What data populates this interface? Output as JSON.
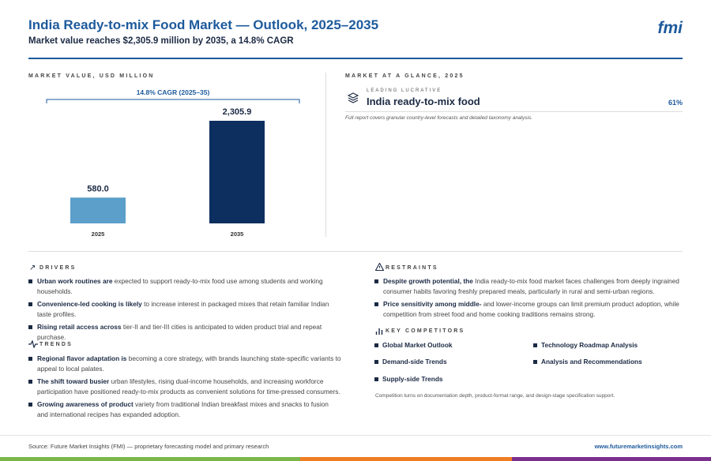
{
  "header": {
    "title": "India Ready-to-mix Food Market — Outlook, 2025–2035",
    "subtitle": "Market value reaches $2,305.9 million by 2035, a 14.8% CAGR",
    "logo": "fmi"
  },
  "chart_data": {
    "type": "bar",
    "title": "MARKET VALUE, USD MILLION",
    "annotation": "14.8% CAGR (2025–35)",
    "categories": [
      "2025",
      "2035"
    ],
    "values": [
      580.0,
      2305.9
    ],
    "value_labels": [
      "580.0",
      "2,305.9"
    ],
    "colors": [
      "#5b9fca",
      "#0c2f5f"
    ]
  },
  "glance": {
    "heading": "MARKET AT A GLANCE, 2025",
    "label": "LEADING LUCRATIVE",
    "segment": "India ready-to-mix food",
    "share": "61%",
    "note": "Full report covers granular country-level forecasts and detailed taxonomy analysis."
  },
  "drivers": {
    "heading": "DRIVERS",
    "items": [
      {
        "lead": "Urban work routines are",
        "text": "expected to support ready-to-mix food use among students and working households."
      },
      {
        "lead": "Convenience-led cooking is likely",
        "text": "to increase interest in packaged mixes that retain familiar Indian taste profiles."
      },
      {
        "lead": "Rising retail access across",
        "text": "tier-II and tier-III cities is anticipated to widen product trial and repeat purchase."
      }
    ]
  },
  "trends": {
    "heading": "TRENDS",
    "items": [
      {
        "lead": "Regional flavor adaptation is",
        "text": "becoming a core strategy, with brands launching state-specific variants to appeal to local palates."
      },
      {
        "lead": "The shift toward busier",
        "text": "urban lifestyles, rising dual-income households, and increasing workforce participation have positioned ready-to-mix products as convenient solutions for time-pressed consumers."
      },
      {
        "lead": "Growing awareness of product",
        "text": "variety from traditional Indian breakfast mixes and snacks to fusion and international recipes has expanded adoption."
      }
    ]
  },
  "restraints": {
    "heading": "RESTRAINTS",
    "items": [
      {
        "lead": "Despite growth potential, the",
        "text": "India ready-to-mix food market faces challenges from deeply ingrained consumer habits favoring freshly prepared meals, particularly in rural and semi-urban regions."
      },
      {
        "lead": "Price sensitivity among middle-",
        "text": "and lower-income groups can limit premium product adoption, while competition from street food and home cooking traditions remains strong."
      }
    ]
  },
  "competitors": {
    "heading": "KEY COMPETITORS",
    "items": [
      "Global Market Outlook",
      "Technology Roadmap Analysis",
      "Demand-side Trends",
      "Analysis and Recommendations",
      "Supply-side Trends"
    ],
    "note": "Competition turns on documentation depth, product-format range, and design-stage specification support."
  },
  "footer": {
    "source": "Source: Future Market Insights (FMI) — proprietary forecasting model and primary research",
    "url": "www.futuremarketinsights.com"
  }
}
